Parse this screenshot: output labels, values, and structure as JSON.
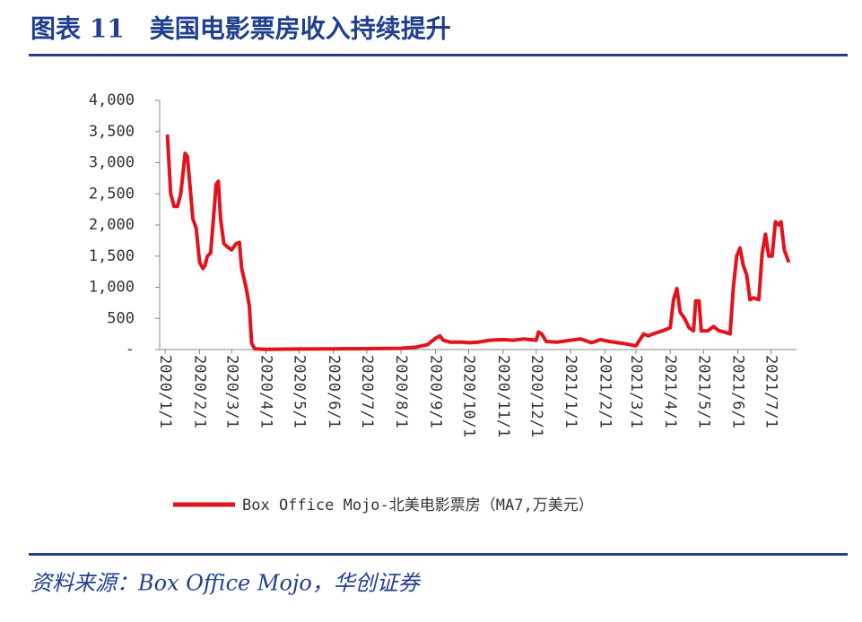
{
  "chart_data": {
    "type": "line",
    "title": "图表 11　美国电影票房收入持续提升",
    "source": "资料来源：Box Office Mojo，华创证券",
    "x": [
      "2020/1/3",
      "2020/1/6",
      "2020/1/9",
      "2020/1/12",
      "2020/1/15",
      "2020/1/19",
      "2020/1/21",
      "2020/1/24",
      "2020/1/26",
      "2020/1/29",
      "2020/2/1",
      "2020/2/4",
      "2020/2/6",
      "2020/2/8",
      "2020/2/11",
      "2020/2/14",
      "2020/2/16",
      "2020/2/18",
      "2020/2/20",
      "2020/2/23",
      "2020/2/26",
      "2020/3/1",
      "2020/3/5",
      "2020/3/8",
      "2020/3/10",
      "2020/3/14",
      "2020/3/17",
      "2020/3/19",
      "2020/3/22",
      "2020/4/1",
      "2020/5/1",
      "2020/6/1",
      "2020/7/1",
      "2020/8/1",
      "2020/8/15",
      "2020/8/25",
      "2020/9/1",
      "2020/9/5",
      "2020/9/8",
      "2020/9/14",
      "2020/9/25",
      "2020/10/1",
      "2020/10/10",
      "2020/10/20",
      "2020/11/1",
      "2020/11/10",
      "2020/11/20",
      "2020/12/1",
      "2020/12/3",
      "2020/12/6",
      "2020/12/10",
      "2020/12/20",
      "2021/1/1",
      "2021/1/10",
      "2021/1/20",
      "2021/1/28",
      "2021/2/5",
      "2021/2/20",
      "2021/3/1",
      "2021/3/8",
      "2021/3/12",
      "2021/3/18",
      "2021/3/25",
      "2021/4/1",
      "2021/4/4",
      "2021/4/7",
      "2021/4/10",
      "2021/4/14",
      "2021/4/18",
      "2021/4/22",
      "2021/4/24",
      "2021/4/27",
      "2021/4/29",
      "2021/5/5",
      "2021/5/10",
      "2021/5/15",
      "2021/5/20",
      "2021/5/25",
      "2021/5/28",
      "2021/5/31",
      "2021/6/3",
      "2021/6/6",
      "2021/6/9",
      "2021/6/12",
      "2021/6/15",
      "2021/6/20",
      "2021/6/23",
      "2021/6/26",
      "2021/6/29",
      "2021/7/2",
      "2021/7/5",
      "2021/7/8",
      "2021/7/10",
      "2021/7/13",
      "2021/7/17"
    ],
    "series": [
      {
        "name": "Box Office Mojo-北美电影票房（MA7,万美元）",
        "color": "#e3121b",
        "values": [
          3450,
          2500,
          2300,
          2300,
          2500,
          3150,
          3100,
          2500,
          2100,
          1950,
          1400,
          1300,
          1350,
          1500,
          1550,
          2200,
          2650,
          2700,
          2100,
          1700,
          1650,
          1600,
          1700,
          1720,
          1300,
          1000,
          700,
          100,
          10,
          5,
          8,
          12,
          15,
          20,
          40,
          80,
          180,
          220,
          150,
          120,
          120,
          110,
          120,
          150,
          160,
          150,
          170,
          150,
          280,
          250,
          130,
          120,
          150,
          170,
          110,
          160,
          130,
          90,
          60,
          250,
          220,
          260,
          300,
          350,
          800,
          980,
          600,
          500,
          350,
          300,
          780,
          780,
          300,
          300,
          370,
          300,
          280,
          250,
          1000,
          1500,
          1630,
          1350,
          1200,
          800,
          830,
          800,
          1550,
          1850,
          1500,
          1500,
          2050,
          2000,
          2050,
          1600,
          1400
        ]
      }
    ],
    "xlim": [
      "2019/12/27",
      "2021/7/24"
    ],
    "xticks": [
      "2020/1/1",
      "2020/2/1",
      "2020/3/1",
      "2020/4/1",
      "2020/5/1",
      "2020/6/1",
      "2020/7/1",
      "2020/8/1",
      "2020/9/1",
      "2020/10/1",
      "2020/11/1",
      "2020/12/1",
      "2021/1/1",
      "2021/2/1",
      "2021/3/1",
      "2021/4/1",
      "2021/5/1",
      "2021/6/1",
      "2021/7/1"
    ],
    "ylim": [
      0,
      4000
    ],
    "yticks": [
      {
        "value": 0,
        "label": "-"
      },
      500,
      {
        "value": 1000,
        "label": "1,000"
      },
      {
        "value": 1500,
        "label": "1,500"
      },
      {
        "value": 2000,
        "label": "2,000"
      },
      {
        "value": 2500,
        "label": "2,500"
      },
      {
        "value": 3000,
        "label": "3,000"
      },
      {
        "value": 3500,
        "label": "3,500"
      },
      {
        "value": 4000,
        "label": "4,000"
      }
    ],
    "legend": "bottom"
  }
}
